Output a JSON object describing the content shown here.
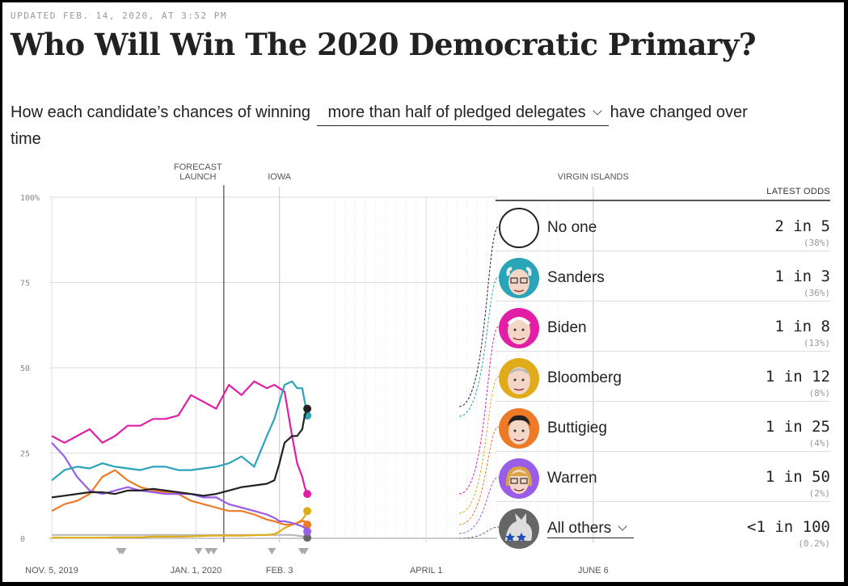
{
  "header": {
    "updated": "UPDATED FEB. 14, 2020, AT 3:52 PM",
    "title": "Who Will Win The 2020 Democratic Primary?",
    "subtitle_before": "How each candidate’s chances of winning",
    "dropdown_value": "more than half of pledged delegates",
    "subtitle_after": "have changed over time"
  },
  "latest_header": "LATEST ODDS",
  "candidates": [
    {
      "name": "No one",
      "odds": "2 in 5",
      "pct": "(38%)",
      "color": "#222222",
      "icon": "empty-circle-icon"
    },
    {
      "name": "Sanders",
      "odds": "1 in 3",
      "pct": "(36%)",
      "color": "#2aa5b8",
      "icon": "sanders-portrait-icon"
    },
    {
      "name": "Biden",
      "odds": "1 in 8",
      "pct": "(13%)",
      "color": "#e21ea6",
      "icon": "biden-portrait-icon"
    },
    {
      "name": "Bloomberg",
      "odds": "1 in 12",
      "pct": "(8%)",
      "color": "#e0ac1a",
      "icon": "bloomberg-portrait-icon"
    },
    {
      "name": "Buttigieg",
      "odds": "1 in 25",
      "pct": "(4%)",
      "color": "#ec7a27",
      "icon": "buttigieg-portrait-icon"
    },
    {
      "name": "Warren",
      "odds": "1 in 50",
      "pct": "(2%)",
      "color": "#9a5de8",
      "icon": "warren-portrait-icon"
    },
    {
      "name": "All others",
      "odds": "<1 in 100",
      "pct": "(0.2%)",
      "color": "#666666",
      "icon": "donkey-icon"
    }
  ],
  "chart_data": {
    "type": "line",
    "title": "",
    "xlabel": "",
    "ylabel": "",
    "ylim": [
      0,
      100
    ],
    "y_ticks": [
      {
        "value": 100,
        "label": "100%"
      },
      {
        "value": 75,
        "label": "75"
      },
      {
        "value": 50,
        "label": "50"
      },
      {
        "value": 25,
        "label": "25"
      },
      {
        "value": 0,
        "label": "0"
      }
    ],
    "x_ticks": [
      {
        "day": 0,
        "label": "NOV. 5, 2019"
      },
      {
        "day": 57,
        "label": "JAN. 1, 2020"
      },
      {
        "day": 90,
        "label": "FEB. 3"
      },
      {
        "day": 148,
        "label": "APRIL 1"
      },
      {
        "day": 214,
        "label": "JUNE 6"
      }
    ],
    "events": [
      {
        "day": 68,
        "label_lines": [
          "FORECAST",
          "LAUNCH"
        ]
      },
      {
        "day": 90,
        "label_lines": [
          "IOWA"
        ]
      },
      {
        "day": 214,
        "label_lines": [
          "VIRGIN ISLANDS"
        ]
      }
    ],
    "grid": true,
    "legend": "right",
    "x": [
      0,
      5,
      10,
      15,
      20,
      25,
      30,
      35,
      40,
      45,
      50,
      55,
      60,
      65,
      70,
      75,
      80,
      85,
      88,
      90,
      92,
      95,
      97,
      99,
      100,
      101
    ],
    "series": [
      {
        "name": "No one",
        "values": [
          12,
          12.5,
          13,
          13.5,
          13.5,
          13,
          14,
          14,
          14.5,
          14,
          13.5,
          13,
          12.5,
          13,
          14,
          15,
          15.5,
          16,
          17,
          22,
          28,
          30,
          30,
          32,
          36,
          38
        ]
      },
      {
        "name": "Sanders",
        "values": [
          17,
          20,
          21,
          20.5,
          22,
          21,
          20.5,
          20,
          21,
          21,
          20,
          20,
          20.5,
          21,
          22,
          24,
          21,
          30,
          35,
          40,
          45,
          46,
          44,
          44,
          40,
          36
        ]
      },
      {
        "name": "Biden",
        "values": [
          30,
          28,
          30,
          32,
          28,
          30,
          33,
          33,
          35,
          35,
          36,
          42,
          40,
          38,
          45,
          42,
          46,
          44,
          45,
          44,
          43,
          30,
          22,
          18,
          15,
          13
        ]
      },
      {
        "name": "Bloomberg",
        "values": [
          0.2,
          0.2,
          0.2,
          0.2,
          0.2,
          0.3,
          0.3,
          0.3,
          0.5,
          0.5,
          0.5,
          0.6,
          0.7,
          0.8,
          0.8,
          0.8,
          0.9,
          1,
          1.2,
          2,
          3,
          4,
          4.5,
          5.5,
          6.5,
          8
        ]
      },
      {
        "name": "Buttigieg",
        "values": [
          8,
          10,
          11,
          13,
          18,
          20,
          17,
          15,
          14,
          13.5,
          13,
          11,
          10,
          9,
          8,
          8,
          7,
          5.5,
          5,
          4.5,
          4,
          4,
          4.5,
          5,
          5,
          4
        ]
      },
      {
        "name": "Warren",
        "values": [
          28,
          24,
          18,
          14,
          13,
          14,
          15,
          14,
          13.5,
          13,
          13,
          13,
          12,
          12,
          10,
          9,
          8,
          7,
          6,
          5,
          5,
          4.5,
          4,
          3.5,
          3,
          2
        ]
      },
      {
        "name": "All others",
        "values": [
          1,
          1,
          1,
          1,
          1,
          1,
          1,
          1,
          1,
          1,
          1,
          1,
          1,
          1,
          1,
          1,
          1,
          1,
          1,
          1,
          1,
          1,
          0.8,
          0.6,
          0.4,
          0.2
        ]
      }
    ]
  }
}
